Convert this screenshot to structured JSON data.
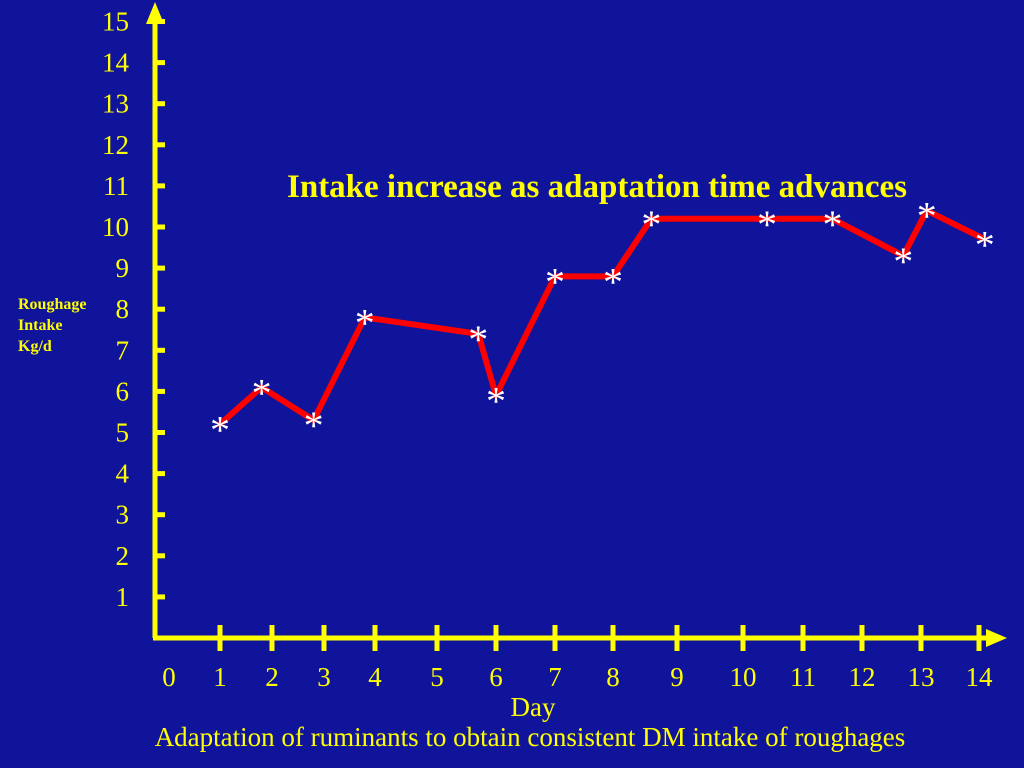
{
  "chart_data": {
    "type": "line",
    "title": "Intake increase as adaptation time advances",
    "subtitle": "Adaptation of ruminants to obtain consistent DM intake of roughages",
    "xlabel": "Day",
    "ylabel_lines": [
      "Roughage",
      "Intake",
      "Kg/d"
    ],
    "x_ticks": [
      "0",
      "1",
      "2",
      "3",
      "4",
      "5",
      "6",
      "7",
      "8",
      "9",
      "10",
      "11",
      "12",
      "13",
      "14"
    ],
    "y_ticks": [
      "1",
      "2",
      "3",
      "4",
      "5",
      "6",
      "7",
      "8",
      "9",
      "10",
      "11",
      "12",
      "13",
      "14",
      "15"
    ],
    "ylim": [
      0,
      15
    ],
    "marker": "*",
    "grid": false,
    "legend": "none",
    "series": [
      {
        "x": [
          1.0,
          1.8,
          2.8,
          3.8,
          5.7,
          6.0,
          7.0,
          8.0,
          8.6,
          10.4,
          11.5,
          12.7,
          13.1,
          14.1
        ],
        "y": [
          5.2,
          6.1,
          5.3,
          7.8,
          7.4,
          5.9,
          8.8,
          8.8,
          10.2,
          10.2,
          10.2,
          9.3,
          10.4,
          9.7
        ]
      }
    ],
    "colors": {
      "background": "#0f149a",
      "axis": "#ffff00",
      "text": "#ffff00",
      "line": "#ff0000",
      "marker": "#ffffff"
    }
  }
}
